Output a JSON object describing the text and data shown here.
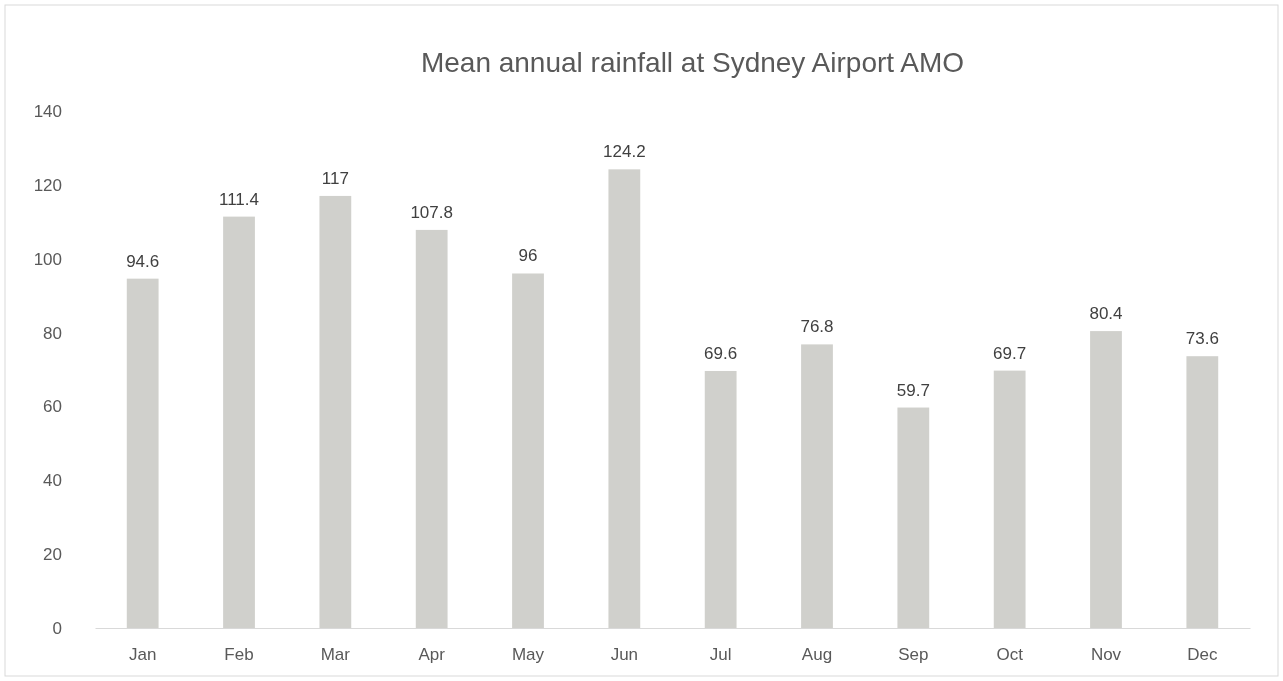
{
  "chart_data": {
    "type": "bar",
    "title": "Mean annual rainfall at Sydney Airport AMO",
    "categories": [
      "Jan",
      "Feb",
      "Mar",
      "Apr",
      "May",
      "Jun",
      "Jul",
      "Aug",
      "Sep",
      "Oct",
      "Nov",
      "Dec"
    ],
    "values": [
      94.6,
      111.4,
      117,
      107.8,
      96,
      124.2,
      69.6,
      76.8,
      59.7,
      69.7,
      80.4,
      73.6
    ],
    "color": "#d0d0cc",
    "ylim": [
      0,
      140
    ],
    "yticks": [
      0,
      20,
      40,
      60,
      80,
      100,
      120,
      140
    ],
    "data_labels": true
  }
}
